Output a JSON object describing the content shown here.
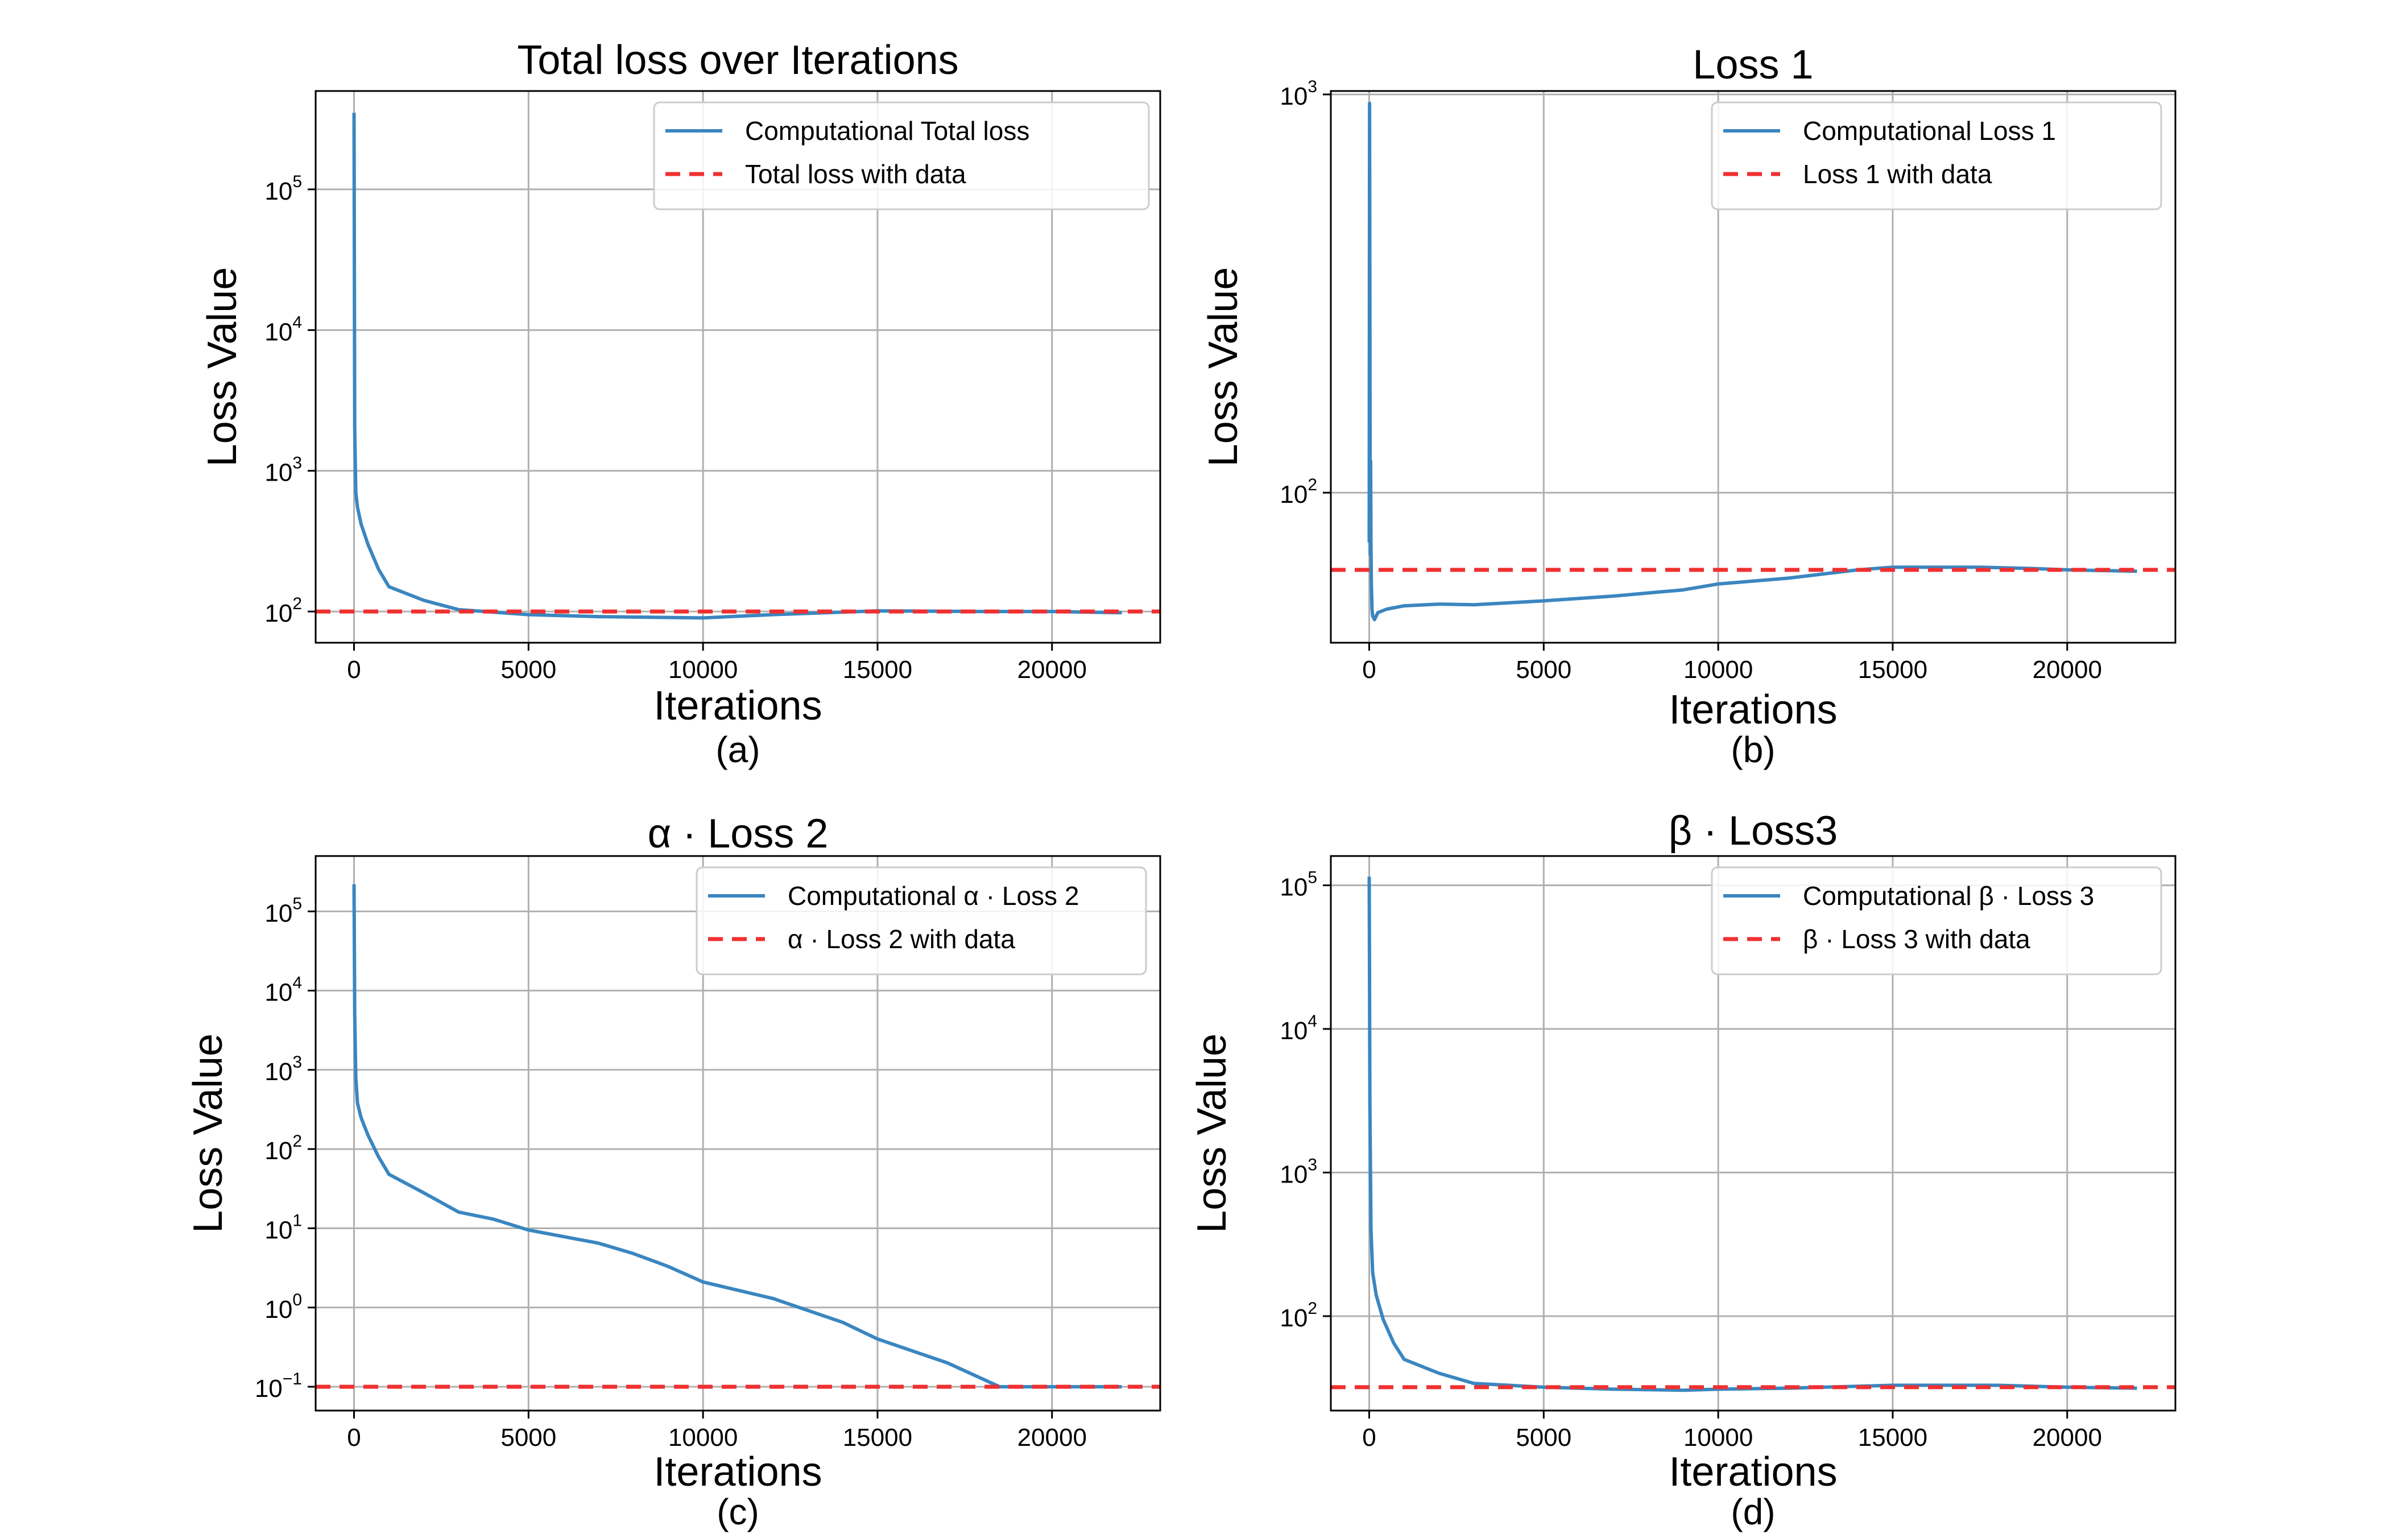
{
  "chart_data": [
    {
      "id": "a",
      "type": "line",
      "title": "Total loss over Iterations",
      "xlabel": "Iterations",
      "ylabel": "Loss Value",
      "caption": "(a)",
      "yscale": "log",
      "xlim": [
        -1100,
        23100
      ],
      "ylim": [
        60,
        500000
      ],
      "xticks": [
        0,
        5000,
        10000,
        15000,
        20000
      ],
      "yticks": [
        {
          "base": "10",
          "exp": "2",
          "value": 100
        },
        {
          "base": "10",
          "exp": "3",
          "value": 1000
        },
        {
          "base": "10",
          "exp": "4",
          "value": 10000
        },
        {
          "base": "10",
          "exp": "5",
          "value": 100000
        }
      ],
      "grid": true,
      "legend_position": "top-right",
      "series": [
        {
          "name": "Computational Total loss",
          "style": "solid",
          "color": "#3a86c0",
          "x": [
            0,
            20,
            50,
            100,
            200,
            400,
            700,
            1000,
            2000,
            3000,
            5000,
            7000,
            10000,
            12000,
            15000,
            18000,
            20000,
            22000
          ],
          "y": [
            350000,
            2000,
            700,
            550,
            420,
            300,
            200,
            150,
            120,
            103,
            95,
            92,
            90,
            95,
            101,
            100,
            100,
            98
          ]
        },
        {
          "name": "Total loss with data",
          "style": "dashed",
          "color": "#f03030",
          "x": [
            -1100,
            23100
          ],
          "y": [
            100,
            100
          ]
        }
      ]
    },
    {
      "id": "b",
      "type": "line",
      "title": "Loss 1",
      "xlabel": "Iterations",
      "ylabel": "Loss Value",
      "caption": "(b)",
      "yscale": "log",
      "xlim": [
        -1100,
        23100
      ],
      "ylim": [
        42,
        1020
      ],
      "xticks": [
        0,
        5000,
        10000,
        15000,
        20000
      ],
      "yticks": [
        {
          "base": "10",
          "exp": "2",
          "value": 100
        },
        {
          "base": "10",
          "exp": "3",
          "value": 1000
        }
      ],
      "grid": true,
      "legend_position": "top-right",
      "series": [
        {
          "name": "Computational Loss 1",
          "style": "solid",
          "color": "#3a86c0",
          "x": [
            0,
            10,
            20,
            30,
            40,
            50,
            60,
            80,
            100,
            150,
            250,
            500,
            1000,
            2000,
            3000,
            5000,
            7000,
            8000,
            9000,
            10000,
            12000,
            14000,
            15000,
            17500,
            19000,
            20000,
            22000
          ],
          "y": [
            75,
            950,
            300,
            70,
            120,
            75,
            60,
            51,
            49,
            48,
            50,
            51,
            52,
            52.5,
            52.3,
            53.5,
            55,
            56,
            57,
            59,
            61,
            64,
            65,
            65,
            64.5,
            64,
            63.5
          ]
        },
        {
          "name": "Loss 1 with data",
          "style": "dashed",
          "color": "#f03030",
          "x": [
            -1100,
            23100
          ],
          "y": [
            64,
            64
          ]
        }
      ]
    },
    {
      "id": "c",
      "type": "line",
      "title": "α · Loss 2",
      "xlabel": "Iterations",
      "ylabel": "Loss Value",
      "caption": "(c)",
      "yscale": "log",
      "xlim": [
        -1100,
        23100
      ],
      "ylim": [
        0.05,
        500000
      ],
      "xticks": [
        0,
        5000,
        10000,
        15000,
        20000
      ],
      "yticks": [
        {
          "base": "10",
          "exp": "−1",
          "value": 0.1
        },
        {
          "base": "10",
          "exp": "0",
          "value": 1
        },
        {
          "base": "10",
          "exp": "1",
          "value": 10
        },
        {
          "base": "10",
          "exp": "2",
          "value": 100
        },
        {
          "base": "10",
          "exp": "3",
          "value": 1000
        },
        {
          "base": "10",
          "exp": "4",
          "value": 10000
        },
        {
          "base": "10",
          "exp": "5",
          "value": 100000
        }
      ],
      "grid": true,
      "legend_position": "top-right",
      "series": [
        {
          "name": "Computational α · Loss 2",
          "style": "solid",
          "color": "#3a86c0",
          "x": [
            0,
            20,
            50,
            100,
            200,
            400,
            700,
            1000,
            2000,
            3000,
            4000,
            5000,
            7000,
            8000,
            9000,
            10000,
            12000,
            14000,
            15000,
            17000,
            18500,
            20000,
            22000
          ],
          "y": [
            220000,
            5000,
            800,
            380,
            250,
            150,
            80,
            48,
            28,
            16,
            13,
            9.5,
            6.5,
            4.8,
            3.3,
            2.1,
            1.3,
            0.65,
            0.4,
            0.2,
            0.1,
            0.1,
            0.1
          ]
        },
        {
          "name": "α · Loss 2 with data",
          "style": "dashed",
          "color": "#f03030",
          "x": [
            -1100,
            23100
          ],
          "y": [
            0.1,
            0.1
          ]
        }
      ]
    },
    {
      "id": "d",
      "type": "line",
      "title": "β · Loss3",
      "xlabel": "Iterations",
      "ylabel": "Loss Value",
      "caption": "(d)",
      "yscale": "log",
      "xlim": [
        -1100,
        23100
      ],
      "ylim": [
        22,
        160000
      ],
      "xticks": [
        0,
        5000,
        10000,
        15000,
        20000
      ],
      "yticks": [
        {
          "base": "10",
          "exp": "2",
          "value": 100
        },
        {
          "base": "10",
          "exp": "3",
          "value": 1000
        },
        {
          "base": "10",
          "exp": "4",
          "value": 10000
        },
        {
          "base": "10",
          "exp": "5",
          "value": 100000
        }
      ],
      "grid": true,
      "legend_position": "top-right",
      "series": [
        {
          "name": "Computational β · Loss 3",
          "style": "solid",
          "color": "#3a86c0",
          "x": [
            0,
            20,
            50,
            100,
            200,
            400,
            700,
            1000,
            2000,
            3000,
            5000,
            7000,
            9000,
            10000,
            12000,
            15000,
            18000,
            20000,
            22000
          ],
          "y": [
            115000,
            3000,
            400,
            200,
            140,
            95,
            65,
            50,
            40,
            34,
            32,
            31,
            30.5,
            31,
            31.5,
            33,
            33,
            32,
            31.5
          ]
        },
        {
          "name": "β · Loss 3 with data",
          "style": "dashed",
          "color": "#f03030",
          "x": [
            -1100,
            23100
          ],
          "y": [
            32,
            32
          ]
        }
      ]
    }
  ]
}
